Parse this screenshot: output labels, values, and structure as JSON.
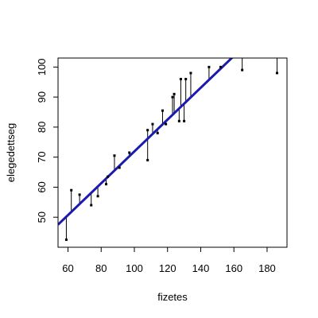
{
  "chart_data": {
    "type": "scatter",
    "title": "",
    "xlabel": "fizetes",
    "ylabel": "elegedettseg",
    "xlim": [
      54,
      192
    ],
    "ylim": [
      40,
      103
    ],
    "xticks": [
      60,
      80,
      100,
      120,
      140,
      160,
      180
    ],
    "yticks": [
      50,
      60,
      70,
      80,
      90,
      100
    ],
    "x_tick_labels": [
      "60",
      "80",
      "100",
      "120",
      "140",
      "160",
      "180"
    ],
    "y_tick_labels": [
      "50",
      "60",
      "70",
      "80",
      "90",
      "100"
    ],
    "grid": false,
    "legend": "none",
    "regression_line": {
      "intercept": 18.9,
      "slope": 0.53,
      "color": "#1a1ab0"
    },
    "residual_color": "#000000",
    "point_color": "#000000",
    "points": [
      {
        "x": 59,
        "y": 42.5
      },
      {
        "x": 62,
        "y": 59
      },
      {
        "x": 67,
        "y": 57.5
      },
      {
        "x": 74,
        "y": 54
      },
      {
        "x": 78,
        "y": 57
      },
      {
        "x": 83,
        "y": 61
      },
      {
        "x": 84,
        "y": 63.5
      },
      {
        "x": 88,
        "y": 70.5
      },
      {
        "x": 91,
        "y": 66.5
      },
      {
        "x": 97,
        "y": 71.5
      },
      {
        "x": 108,
        "y": 79
      },
      {
        "x": 108,
        "y": 69
      },
      {
        "x": 111,
        "y": 81
      },
      {
        "x": 114,
        "y": 78
      },
      {
        "x": 117,
        "y": 85.5
      },
      {
        "x": 119,
        "y": 81
      },
      {
        "x": 123,
        "y": 90
      },
      {
        "x": 124,
        "y": 91
      },
      {
        "x": 127,
        "y": 82
      },
      {
        "x": 128,
        "y": 96
      },
      {
        "x": 130,
        "y": 82
      },
      {
        "x": 131,
        "y": 96
      },
      {
        "x": 134,
        "y": 98
      },
      {
        "x": 145,
        "y": 100
      },
      {
        "x": 152,
        "y": 100
      },
      {
        "x": 165,
        "y": 99
      },
      {
        "x": 186,
        "y": 98
      }
    ]
  }
}
